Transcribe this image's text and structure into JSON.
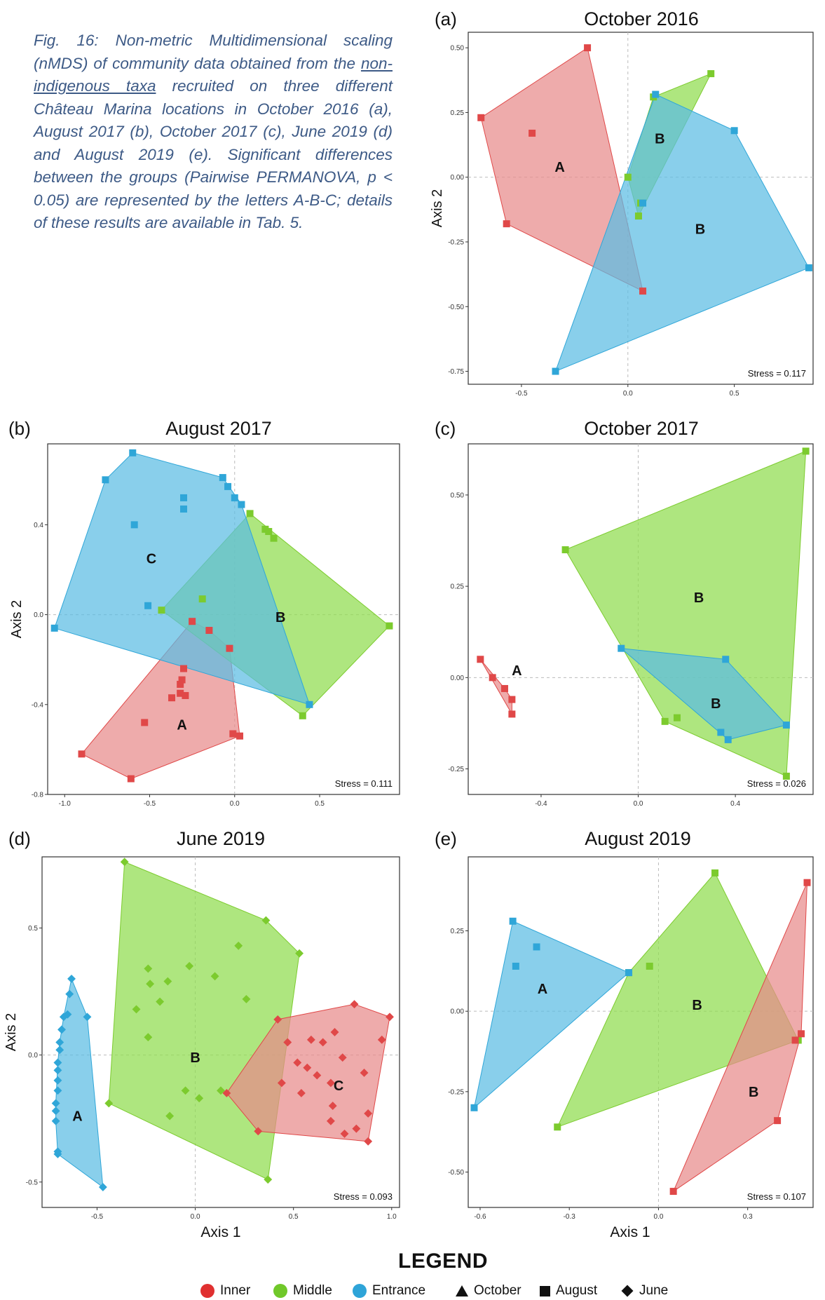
{
  "caption": {
    "prefix": "Fig. 16: Non-metric Multidimensional scaling (nMDS) of community data obtained from the ",
    "underlined": "non-indigenous taxa",
    "suffix": " recruited on three different Château Marina locations in October 2016 (a), August 2017 (b), October 2017 (c), June 2019 (d) and August 2019 (e). Significant differences between the groups (Pairwise PERMANOVA, p < 0.05) are represented by the letters A-B-C; details of these results are available in Tab. 5."
  },
  "colors": {
    "inner_fill": "#e88a8a",
    "inner_point": "#e04848",
    "middle_fill": "#8fdc4e",
    "middle_point": "#7ccb2e",
    "entrance_fill": "#5cbde3",
    "entrance_point": "#2fa6d8"
  },
  "legend": {
    "title": "LEGEND",
    "groups": [
      "Inner",
      "Middle",
      "Entrance"
    ],
    "shapes": [
      "October",
      "August",
      "June"
    ]
  },
  "chart_data": [
    {
      "type": "scatter",
      "panel_label": "(a)",
      "title": "October 2016",
      "xlabel": "",
      "ylabel": "Axis 2",
      "xlim": [
        -0.75,
        0.87
      ],
      "ylim": [
        -0.8,
        0.56
      ],
      "xticks": [
        "-0.5",
        "0.0",
        "0.5"
      ],
      "xtick_values": [
        -0.5,
        0.0,
        0.5
      ],
      "yticks": [
        "0.50",
        "0.25",
        "0.00",
        "-0.25",
        "-0.50",
        "-0.75"
      ],
      "ytick_values": [
        0.5,
        0.25,
        0.0,
        -0.25,
        -0.5,
        -0.75
      ],
      "stress": "Stress = 0.117",
      "marker": "square",
      "series": [
        {
          "group": "inner",
          "points": [
            [
              -0.69,
              0.23
            ],
            [
              -0.19,
              0.5
            ],
            [
              0.07,
              -0.44
            ],
            [
              -0.57,
              -0.18
            ],
            [
              -0.45,
              0.17
            ]
          ],
          "label": "A",
          "label_at": [
            -0.32,
            0.04
          ]
        },
        {
          "group": "middle",
          "points": [
            [
              0.0,
              0.0
            ],
            [
              0.12,
              0.31
            ],
            [
              0.39,
              0.4
            ],
            [
              0.05,
              -0.15
            ],
            [
              0.06,
              -0.1
            ]
          ],
          "label": "B",
          "label_at": [
            0.15,
            0.15
          ]
        },
        {
          "group": "entrance",
          "points": [
            [
              0.13,
              0.32
            ],
            [
              0.5,
              0.18
            ],
            [
              0.85,
              -0.35
            ],
            [
              -0.34,
              -0.75
            ],
            [
              0.07,
              -0.1
            ]
          ],
          "label": "B",
          "label_at": [
            0.34,
            -0.2
          ]
        }
      ]
    },
    {
      "type": "scatter",
      "panel_label": "(b)",
      "title": "August 2017",
      "xlabel": "",
      "ylabel": "Axis 2",
      "xlim": [
        -1.1,
        0.97
      ],
      "ylim": [
        -0.8,
        0.76
      ],
      "xticks": [
        "-1.0",
        "-0.5",
        "0.0",
        "0.5"
      ],
      "xtick_values": [
        -1.0,
        -0.5,
        0.0,
        0.5
      ],
      "yticks": [
        "0.4",
        "0.0",
        "-0.4",
        "-0.8"
      ],
      "ytick_values": [
        0.4,
        0.0,
        -0.4,
        -0.8
      ],
      "stress": "Stress = 0.111",
      "marker": "square",
      "series": [
        {
          "group": "inner",
          "points": [
            [
              -0.9,
              -0.62
            ],
            [
              -0.61,
              -0.73
            ],
            [
              0.03,
              -0.54
            ],
            [
              -0.25,
              -0.03
            ],
            [
              -0.15,
              -0.07
            ],
            [
              -0.03,
              -0.15
            ],
            [
              -0.01,
              -0.53
            ],
            [
              -0.37,
              -0.37
            ],
            [
              -0.31,
              -0.29
            ],
            [
              -0.32,
              -0.31
            ],
            [
              -0.3,
              -0.24
            ],
            [
              -0.53,
              -0.48
            ],
            [
              -0.32,
              -0.35
            ],
            [
              -0.29,
              -0.36
            ]
          ],
          "label": "A",
          "label_at": [
            -0.31,
            -0.49
          ]
        },
        {
          "group": "middle",
          "points": [
            [
              -0.43,
              0.02
            ],
            [
              0.09,
              0.45
            ],
            [
              0.91,
              -0.05
            ],
            [
              0.4,
              -0.45
            ],
            [
              -0.19,
              0.07
            ],
            [
              0.18,
              0.38
            ],
            [
              0.23,
              0.34
            ],
            [
              0.2,
              0.37
            ]
          ],
          "label": "B",
          "label_at": [
            0.27,
            -0.01
          ]
        },
        {
          "group": "entrance",
          "points": [
            [
              -0.6,
              0.72
            ],
            [
              -0.76,
              0.6
            ],
            [
              -1.06,
              -0.06
            ],
            [
              0.44,
              -0.4
            ],
            [
              -0.07,
              0.61
            ],
            [
              -0.04,
              0.57
            ],
            [
              0.0,
              0.52
            ],
            [
              0.04,
              0.49
            ],
            [
              -0.3,
              0.52
            ],
            [
              -0.3,
              0.47
            ],
            [
              -0.59,
              0.4
            ],
            [
              -0.51,
              0.04
            ]
          ],
          "label": "C",
          "label_at": [
            -0.49,
            0.25
          ]
        }
      ]
    },
    {
      "type": "scatter",
      "panel_label": "(c)",
      "title": "October 2017",
      "xlabel": "",
      "ylabel": "",
      "xlim": [
        -0.7,
        0.72
      ],
      "ylim": [
        -0.32,
        0.64
      ],
      "xticks": [
        "-0.4",
        "0.0",
        "0.4"
      ],
      "xtick_values": [
        -0.4,
        0.0,
        0.4
      ],
      "yticks": [
        "0.50",
        "0.25",
        "0.00",
        "-0.25"
      ],
      "ytick_values": [
        0.5,
        0.25,
        0.0,
        -0.25
      ],
      "stress": "Stress = 0.026",
      "marker": "square",
      "series": [
        {
          "group": "inner",
          "points": [
            [
              -0.65,
              0.05
            ],
            [
              -0.6,
              0.0
            ],
            [
              -0.55,
              -0.03
            ],
            [
              -0.52,
              -0.06
            ],
            [
              -0.52,
              -0.1
            ]
          ],
          "label": "A",
          "label_at": [
            -0.5,
            0.02
          ]
        },
        {
          "group": "middle",
          "points": [
            [
              -0.3,
              0.35
            ],
            [
              0.69,
              0.62
            ],
            [
              0.61,
              -0.27
            ],
            [
              0.16,
              -0.11
            ],
            [
              0.11,
              -0.12
            ]
          ],
          "label": "B",
          "label_at": [
            0.25,
            0.22
          ]
        },
        {
          "group": "entrance",
          "points": [
            [
              -0.07,
              0.08
            ],
            [
              0.36,
              0.05
            ],
            [
              0.61,
              -0.13
            ],
            [
              0.37,
              -0.17
            ],
            [
              0.34,
              -0.15
            ]
          ],
          "label": "B",
          "label_at": [
            0.32,
            -0.07
          ]
        }
      ]
    },
    {
      "type": "scatter",
      "panel_label": "(d)",
      "title": "June 2019",
      "xlabel": "Axis 1",
      "ylabel": "Axis 2",
      "xlim": [
        -0.78,
        1.04
      ],
      "ylim": [
        -0.6,
        0.78
      ],
      "xticks": [
        "-0.5",
        "0.0",
        "0.5",
        "1.0"
      ],
      "xtick_values": [
        -0.5,
        0.0,
        0.5,
        1.0
      ],
      "yticks": [
        "0.5",
        "0.0",
        "-0.5"
      ],
      "ytick_values": [
        0.5,
        0.0,
        -0.5
      ],
      "stress": "Stress = 0.093",
      "marker": "diamond",
      "series": [
        {
          "group": "middle",
          "points": [
            [
              -0.36,
              0.76
            ],
            [
              0.36,
              0.53
            ],
            [
              0.53,
              0.4
            ],
            [
              0.37,
              -0.49
            ],
            [
              -0.44,
              -0.19
            ],
            [
              -0.24,
              0.34
            ],
            [
              -0.23,
              0.28
            ],
            [
              -0.14,
              0.29
            ],
            [
              -0.03,
              0.35
            ],
            [
              0.1,
              0.31
            ],
            [
              0.22,
              0.43
            ],
            [
              0.26,
              0.22
            ],
            [
              -0.3,
              0.18
            ],
            [
              -0.18,
              0.21
            ],
            [
              -0.24,
              0.07
            ],
            [
              -0.05,
              -0.14
            ],
            [
              0.02,
              -0.17
            ],
            [
              -0.13,
              -0.24
            ],
            [
              0.13,
              -0.14
            ]
          ],
          "label": "B",
          "label_at": [
            0.0,
            -0.01
          ]
        },
        {
          "group": "inner",
          "points": [
            [
              0.81,
              0.2
            ],
            [
              0.99,
              0.15
            ],
            [
              0.88,
              -0.34
            ],
            [
              0.32,
              -0.3
            ],
            [
              0.16,
              -0.15
            ],
            [
              0.42,
              0.14
            ],
            [
              0.59,
              0.06
            ],
            [
              0.65,
              0.05
            ],
            [
              0.71,
              0.09
            ],
            [
              0.47,
              0.05
            ],
            [
              0.52,
              -0.03
            ],
            [
              0.57,
              -0.05
            ],
            [
              0.62,
              -0.08
            ],
            [
              0.69,
              -0.11
            ],
            [
              0.75,
              -0.01
            ],
            [
              0.86,
              -0.07
            ],
            [
              0.95,
              0.06
            ],
            [
              0.44,
              -0.11
            ],
            [
              0.54,
              -0.15
            ],
            [
              0.7,
              -0.2
            ],
            [
              0.82,
              -0.29
            ],
            [
              0.69,
              -0.26
            ],
            [
              0.76,
              -0.31
            ],
            [
              0.88,
              -0.23
            ]
          ],
          "label": "C",
          "label_at": [
            0.73,
            -0.12
          ]
        },
        {
          "group": "entrance",
          "points": [
            [
              -0.63,
              0.3
            ],
            [
              -0.55,
              0.15
            ],
            [
              -0.47,
              -0.52
            ],
            [
              -0.7,
              -0.38
            ],
            [
              -0.7,
              -0.39
            ],
            [
              -0.64,
              0.24
            ],
            [
              -0.65,
              0.16
            ],
            [
              -0.67,
              0.15
            ],
            [
              -0.68,
              0.1
            ],
            [
              -0.69,
              0.05
            ],
            [
              -0.69,
              0.02
            ],
            [
              -0.7,
              -0.03
            ],
            [
              -0.7,
              -0.06
            ],
            [
              -0.7,
              -0.1
            ],
            [
              -0.7,
              -0.14
            ],
            [
              -0.71,
              -0.19
            ],
            [
              -0.71,
              -0.22
            ],
            [
              -0.71,
              -0.26
            ]
          ],
          "label": "A",
          "label_at": [
            -0.6,
            -0.24
          ]
        }
      ]
    },
    {
      "type": "scatter",
      "panel_label": "(e)",
      "title": "August 2019",
      "xlabel": "Axis 1",
      "ylabel": "",
      "xlim": [
        -0.64,
        0.52
      ],
      "ylim": [
        -0.61,
        0.48
      ],
      "xticks": [
        "-0.6",
        "-0.3",
        "0.0",
        "0.3"
      ],
      "xtick_values": [
        -0.6,
        -0.3,
        0.0,
        0.3
      ],
      "yticks": [
        "0.25",
        "0.00",
        "-0.25",
        "-0.50"
      ],
      "ytick_values": [
        0.25,
        0.0,
        -0.25,
        -0.5
      ],
      "stress": "Stress = 0.107",
      "marker": "square",
      "series": [
        {
          "group": "middle",
          "points": [
            [
              0.19,
              0.43
            ],
            [
              0.47,
              -0.09
            ],
            [
              -0.34,
              -0.36
            ],
            [
              -0.1,
              0.12
            ],
            [
              -0.03,
              0.14
            ]
          ],
          "label": "B",
          "label_at": [
            0.13,
            0.02
          ]
        },
        {
          "group": "inner",
          "points": [
            [
              0.5,
              0.4
            ],
            [
              0.48,
              -0.07
            ],
            [
              0.05,
              -0.56
            ],
            [
              0.4,
              -0.34
            ],
            [
              0.46,
              -0.09
            ]
          ],
          "label": "B",
          "label_at": [
            0.32,
            -0.25
          ]
        },
        {
          "group": "entrance",
          "points": [
            [
              -0.49,
              0.28
            ],
            [
              -0.1,
              0.12
            ],
            [
              -0.62,
              -0.3
            ],
            [
              -0.41,
              0.2
            ],
            [
              -0.48,
              0.14
            ]
          ],
          "label": "A",
          "label_at": [
            -0.39,
            0.07
          ]
        }
      ]
    }
  ]
}
